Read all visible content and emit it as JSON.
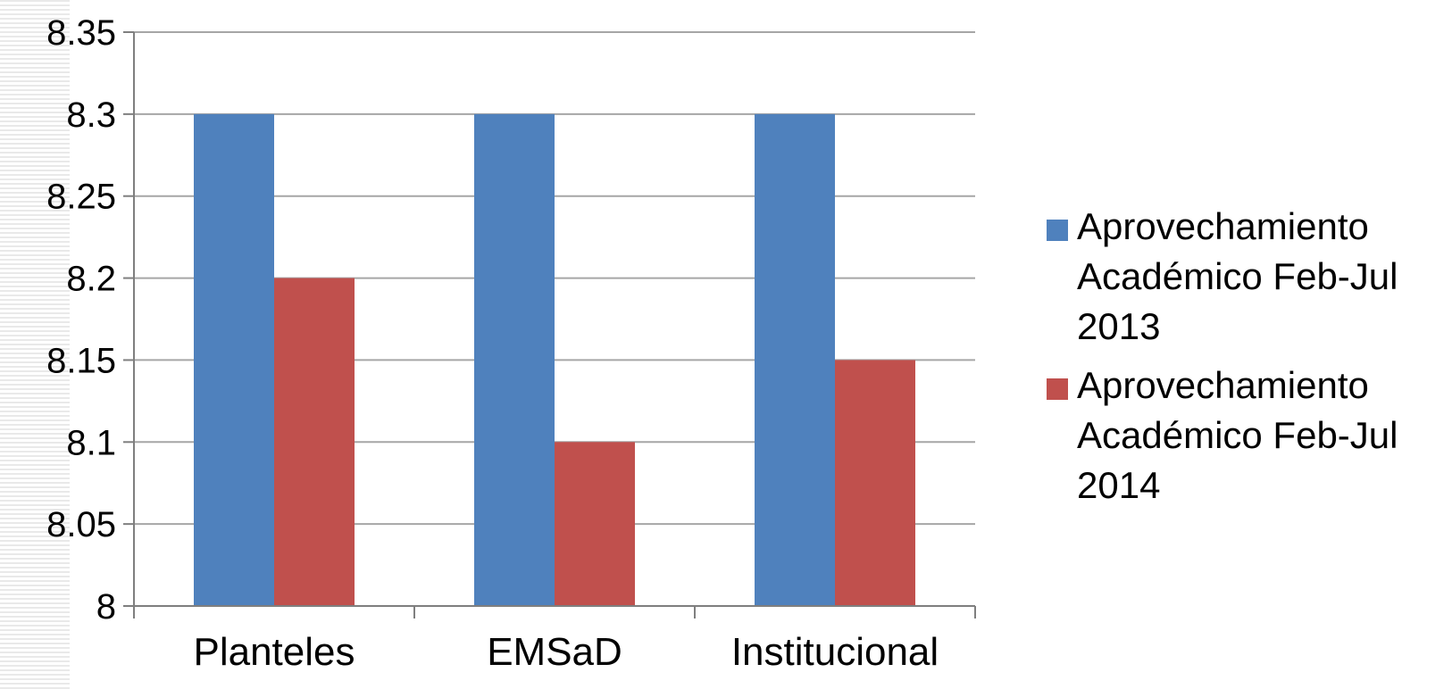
{
  "chart_data": {
    "type": "bar",
    "categories": [
      "Planteles",
      "EMSaD",
      "Institucional"
    ],
    "series": [
      {
        "name": "Aprovechamiento Académico Feb-Jul 2013",
        "color": "#4f81bd",
        "values": [
          8.3,
          8.3,
          8.3
        ]
      },
      {
        "name": "Aprovechamiento Académico Feb-Jul 2014",
        "color": "#c0504d",
        "values": [
          8.2,
          8.1,
          8.15
        ]
      }
    ],
    "yticks": [
      "8",
      "8.05",
      "8.1",
      "8.15",
      "8.2",
      "8.25",
      "8.3",
      "8.35"
    ],
    "ylim": [
      8,
      8.35
    ],
    "grid": true,
    "legend_position": "right"
  }
}
